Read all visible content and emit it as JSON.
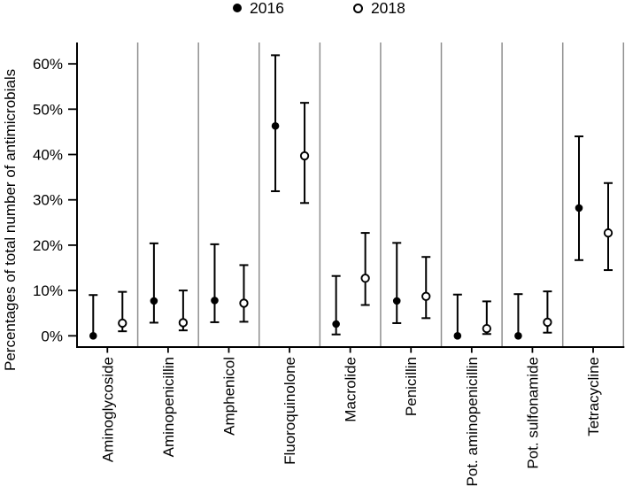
{
  "figure": {
    "background": "#ffffff",
    "axis_color": "#000000",
    "separator_color": "#8f8f8f",
    "marker_color": "#000000"
  },
  "legend": {
    "items": [
      {
        "label": "2016",
        "marker": "filled-circle"
      },
      {
        "label": "2018",
        "marker": "open-circle"
      }
    ]
  },
  "chart_data": {
    "type": "scatter",
    "subtype": "point estimates with 95% CI error bars, one panel per antimicrobial class",
    "title": "",
    "xlabel": "",
    "ylabel": "Percentages of total number of antimicrobials",
    "categories": [
      "Aminoglycoside",
      "Aminopenicillin",
      "Amphenicol",
      "Fluoroquinolone",
      "Macrolide",
      "Penicillin",
      "Pot. aminopenicillin",
      "Pot. sulfonamide",
      "Tetracycline"
    ],
    "series": [
      {
        "name": "2016",
        "marker": "filled-circle",
        "values": [
          0.0,
          7.7,
          7.8,
          46.3,
          2.6,
          7.7,
          0.0,
          0.0,
          28.2
        ],
        "ci_low": [
          0.0,
          2.9,
          3.0,
          31.9,
          0.3,
          2.8,
          0.0,
          0.0,
          16.7
        ],
        "ci_high": [
          9.0,
          20.4,
          20.2,
          61.9,
          13.2,
          20.5,
          9.1,
          9.2,
          44.0
        ]
      },
      {
        "name": "2018",
        "marker": "open-circle",
        "values": [
          2.8,
          2.9,
          7.2,
          39.7,
          12.7,
          8.7,
          1.6,
          3.0,
          22.7
        ],
        "ci_low": [
          1.0,
          1.2,
          3.1,
          29.3,
          6.8,
          3.9,
          0.4,
          0.7,
          14.5
        ],
        "ci_high": [
          9.7,
          10.0,
          15.6,
          51.4,
          22.7,
          17.4,
          7.6,
          9.8,
          33.7
        ]
      }
    ],
    "yticks": [
      0,
      10,
      20,
      30,
      40,
      50,
      60
    ],
    "ytick_labels": [
      "0%",
      "10%",
      "20%",
      "30%",
      "40%",
      "50%",
      "60%"
    ],
    "ylim": [
      -2.5,
      64.7
    ],
    "grid": false,
    "panel_separators": true,
    "legend_position": "top-center"
  }
}
